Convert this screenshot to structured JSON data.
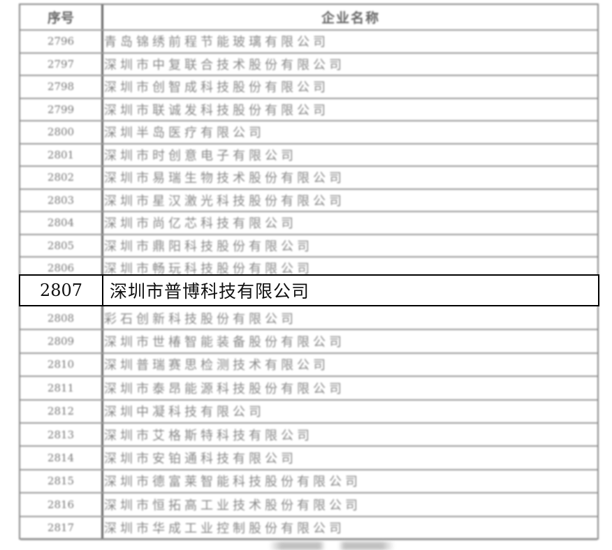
{
  "table": {
    "header": {
      "number": "序号",
      "name": "企业名称"
    },
    "rows_before": [
      {
        "number": "2796",
        "name": "青岛锦绣前程节能玻璃有限公司"
      },
      {
        "number": "2797",
        "name": "深圳市中复联合技术股份有限公司"
      },
      {
        "number": "2798",
        "name": "深圳市创智成科技股份有限公司"
      },
      {
        "number": "2799",
        "name": "深圳市联诚发科技股份有限公司"
      },
      {
        "number": "2800",
        "name": "深圳半岛医疗有限公司"
      },
      {
        "number": "2801",
        "name": "深圳市时创意电子有限公司"
      },
      {
        "number": "2802",
        "name": "深圳市易瑞生物技术股份有限公司"
      },
      {
        "number": "2803",
        "name": "深圳市星汉激光科技股份有限公司"
      },
      {
        "number": "2804",
        "name": "深圳市尚亿芯科技有限公司"
      },
      {
        "number": "2805",
        "name": "深圳市鼎阳科技股份有限公司"
      },
      {
        "number": "2806",
        "name": "深圳市畅玩科技股份有限公司"
      }
    ],
    "highlighted": {
      "number": "2807",
      "name": "深圳市普博科技有限公司"
    },
    "rows_after": [
      {
        "number": "2808",
        "name": "彩石创新科技股份有限公司"
      },
      {
        "number": "2809",
        "name": "深圳市世椿智能装备股份有限公司"
      },
      {
        "number": "2810",
        "name": "深圳普瑞赛思检测技术有限公司"
      },
      {
        "number": "2811",
        "name": "深圳市泰昂能源科技股份有限公司"
      },
      {
        "number": "2812",
        "name": "深圳中凝科技有限公司"
      },
      {
        "number": "2813",
        "name": "深圳市艾格斯特科技有限公司"
      },
      {
        "number": "2814",
        "name": "深圳市安铂通科技有限公司"
      },
      {
        "number": "2815",
        "name": "深圳市德富莱智能科技股份有限公司"
      },
      {
        "number": "2816",
        "name": "深圳市恒拓高工业技术股份有限公司"
      },
      {
        "number": "2817",
        "name": "深圳市华成工业控制股份有限公司"
      }
    ]
  }
}
